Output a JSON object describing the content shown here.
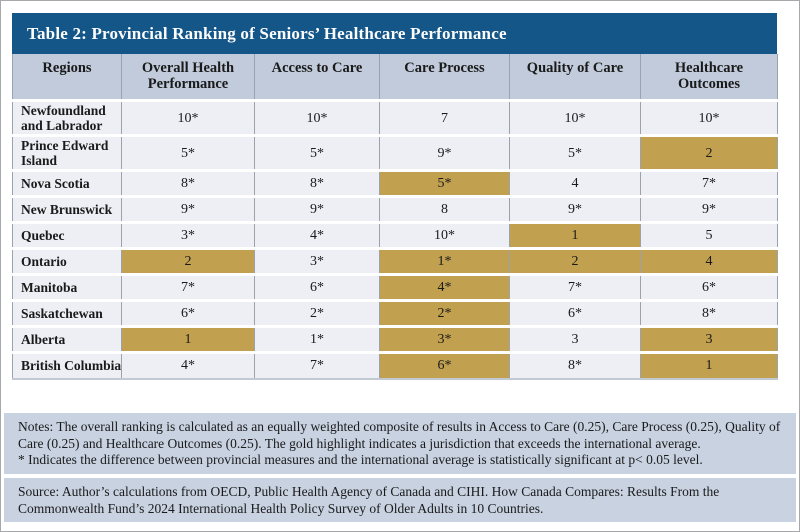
{
  "title": "Table 2: Provincial Ranking of Seniors’ Healthcare Performance",
  "table": {
    "columns": [
      "Regions",
      "Overall Health\nPerformance",
      "Access to Care",
      "Care Process",
      "Quality of Care",
      "Healthcare\nOutcomes"
    ],
    "rows": [
      {
        "region": "Newfoundland\nand Labrador",
        "cells": [
          {
            "text": "10*",
            "gold": false
          },
          {
            "text": "10*",
            "gold": false
          },
          {
            "text": "7",
            "gold": false
          },
          {
            "text": "10*",
            "gold": false
          },
          {
            "text": "10*",
            "gold": false
          }
        ]
      },
      {
        "region": "Prince Edward\nIsland",
        "cells": [
          {
            "text": "5*",
            "gold": false
          },
          {
            "text": "5*",
            "gold": false
          },
          {
            "text": "9*",
            "gold": false
          },
          {
            "text": "5*",
            "gold": false
          },
          {
            "text": "2",
            "gold": true
          }
        ]
      },
      {
        "region": "Nova Scotia",
        "cells": [
          {
            "text": "8*",
            "gold": false
          },
          {
            "text": "8*",
            "gold": false
          },
          {
            "text": "5*",
            "gold": true
          },
          {
            "text": "4",
            "gold": false
          },
          {
            "text": "7*",
            "gold": false
          }
        ]
      },
      {
        "region": "New Brunswick",
        "cells": [
          {
            "text": "9*",
            "gold": false
          },
          {
            "text": "9*",
            "gold": false
          },
          {
            "text": "8",
            "gold": false
          },
          {
            "text": "9*",
            "gold": false
          },
          {
            "text": "9*",
            "gold": false
          }
        ]
      },
      {
        "region": "Quebec",
        "cells": [
          {
            "text": "3*",
            "gold": false
          },
          {
            "text": "4*",
            "gold": false
          },
          {
            "text": "10*",
            "gold": false
          },
          {
            "text": "1",
            "gold": true
          },
          {
            "text": "5",
            "gold": false
          }
        ]
      },
      {
        "region": "Ontario",
        "cells": [
          {
            "text": "2",
            "gold": true
          },
          {
            "text": "3*",
            "gold": false
          },
          {
            "text": "1*",
            "gold": true
          },
          {
            "text": "2",
            "gold": true
          },
          {
            "text": "4",
            "gold": true
          }
        ]
      },
      {
        "region": "Manitoba",
        "cells": [
          {
            "text": "7*",
            "gold": false
          },
          {
            "text": "6*",
            "gold": false
          },
          {
            "text": "4*",
            "gold": true
          },
          {
            "text": "7*",
            "gold": false
          },
          {
            "text": "6*",
            "gold": false
          }
        ]
      },
      {
        "region": "Saskatchewan",
        "cells": [
          {
            "text": "6*",
            "gold": false
          },
          {
            "text": "2*",
            "gold": false
          },
          {
            "text": "2*",
            "gold": true
          },
          {
            "text": "6*",
            "gold": false
          },
          {
            "text": "8*",
            "gold": false
          }
        ]
      },
      {
        "region": "Alberta",
        "cells": [
          {
            "text": "1",
            "gold": true
          },
          {
            "text": "1*",
            "gold": false
          },
          {
            "text": "3*",
            "gold": true
          },
          {
            "text": "3",
            "gold": false
          },
          {
            "text": "3",
            "gold": true
          }
        ]
      },
      {
        "region": "British Columbia",
        "cells": [
          {
            "text": "4*",
            "gold": false
          },
          {
            "text": "7*",
            "gold": false
          },
          {
            "text": "6*",
            "gold": true
          },
          {
            "text": "8*",
            "gold": false
          },
          {
            "text": "1",
            "gold": true
          }
        ]
      }
    ]
  },
  "notes": {
    "line1": "Notes: The overall ranking is calculated as an equally weighted composite of results in Access to Care (0.25), Care Process (0.25), Quality of Care (0.25) and Healthcare Outcomes (0.25). The gold highlight indicates a jurisdiction that exceeds the international average.",
    "line2": "* Indicates the difference between provincial measures and the international average is statistically significant at p< 0.05 level."
  },
  "source": "Source: Author’s calculations from OECD, Public Health Agency of Canada and CIHI. How Canada Compares: Results From the Commonwealth Fund’s 2024 International Health Policy Survey of Older Adults in 10 Countries.",
  "colors": {
    "title_bar": "#155689",
    "header_bg": "#c1cbdb",
    "row_bg": "#edeff5",
    "gold_highlight": "#c1a04f",
    "notes_bg": "#c8d2e1"
  }
}
